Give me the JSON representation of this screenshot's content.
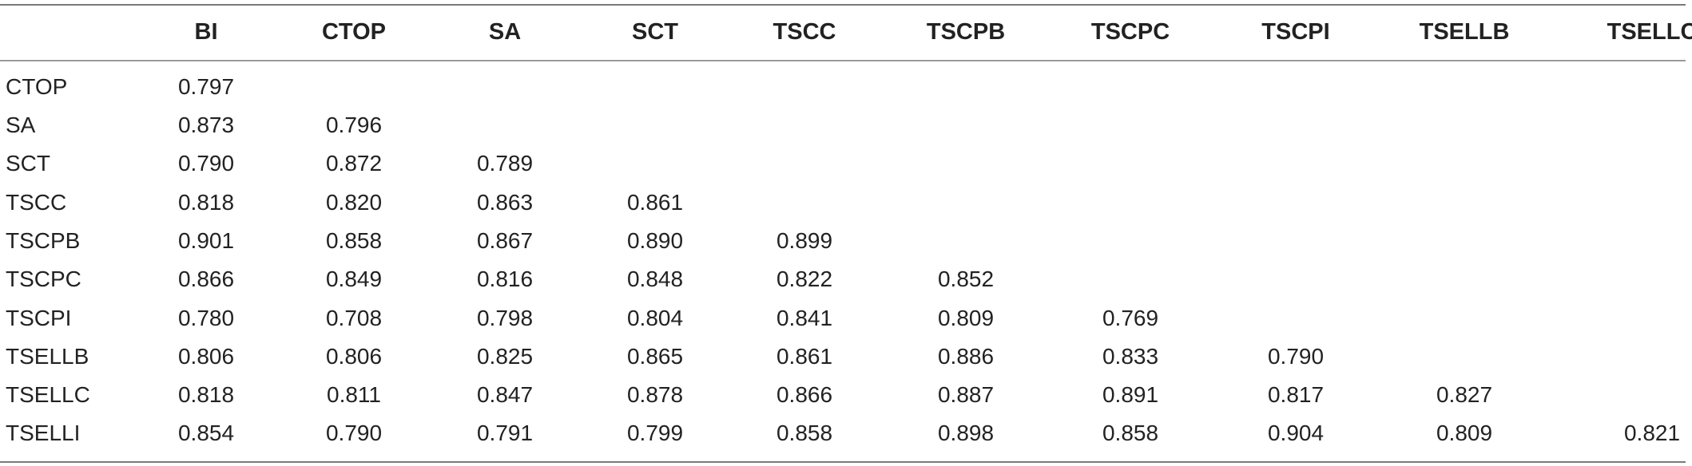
{
  "table": {
    "columns": [
      "BI",
      "CTOP",
      "SA",
      "SCT",
      "TSCC",
      "TSCPB",
      "TSCPC",
      "TSCPI",
      "TSELLB",
      "TSELLC"
    ],
    "rows": [
      {
        "label": "CTOP",
        "values": [
          "0.797"
        ]
      },
      {
        "label": "SA",
        "values": [
          "0.873",
          "0.796"
        ]
      },
      {
        "label": "SCT",
        "values": [
          "0.790",
          "0.872",
          "0.789"
        ]
      },
      {
        "label": "TSCC",
        "values": [
          "0.818",
          "0.820",
          "0.863",
          "0.861"
        ]
      },
      {
        "label": "TSCPB",
        "values": [
          "0.901",
          "0.858",
          "0.867",
          "0.890",
          "0.899"
        ]
      },
      {
        "label": "TSCPC",
        "values": [
          "0.866",
          "0.849",
          "0.816",
          "0.848",
          "0.822",
          "0.852"
        ]
      },
      {
        "label": "TSCPI",
        "values": [
          "0.780",
          "0.708",
          "0.798",
          "0.804",
          "0.841",
          "0.809",
          "0.769"
        ]
      },
      {
        "label": "TSELLB",
        "values": [
          "0.806",
          "0.806",
          "0.825",
          "0.865",
          "0.861",
          "0.886",
          "0.833",
          "0.790"
        ]
      },
      {
        "label": "TSELLC",
        "values": [
          "0.818",
          "0.811",
          "0.847",
          "0.878",
          "0.866",
          "0.887",
          "0.891",
          "0.817",
          "0.827"
        ]
      },
      {
        "label": "TSELLI",
        "values": [
          "0.854",
          "0.790",
          "0.791",
          "0.799",
          "0.858",
          "0.898",
          "0.858",
          "0.904",
          "0.809",
          "0.821"
        ]
      }
    ]
  }
}
